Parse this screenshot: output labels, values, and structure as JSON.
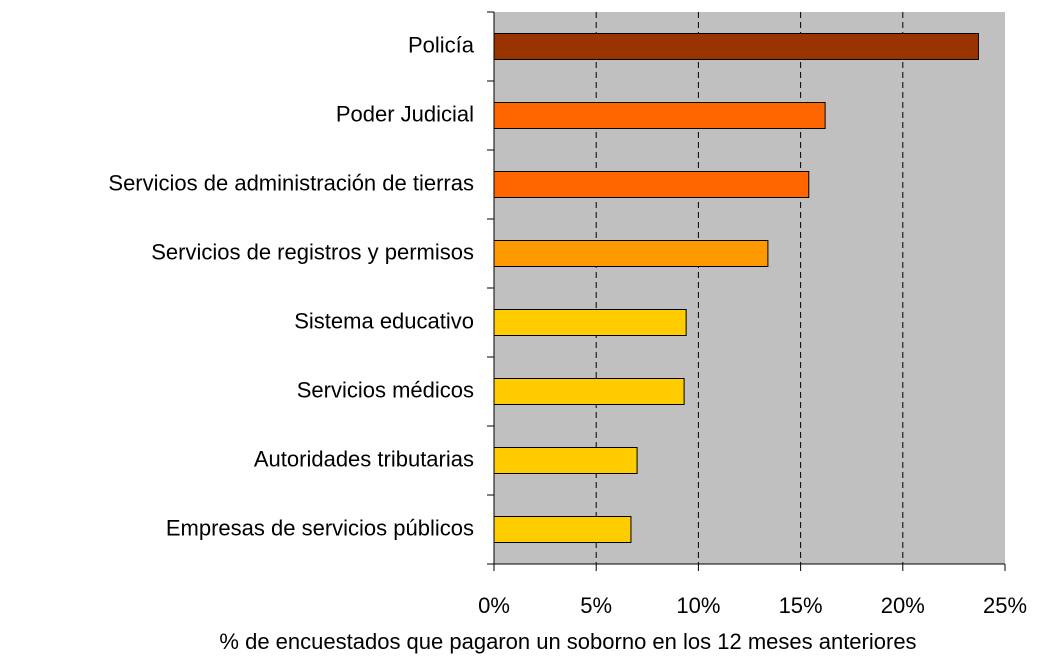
{
  "chart_data": {
    "type": "barh",
    "x_label": "% de encuestados que pagaron un soborno en los 12 meses anteriores",
    "categories": [
      "Policía",
      "Poder Judicial",
      "Servicios de administración de tierras",
      "Servicios de registros y permisos",
      "Sistema educativo",
      "Servicios médicos",
      "Autoridades tributarias",
      "Empresas de servicios públicos"
    ],
    "values": [
      23.7,
      16.2,
      15.4,
      13.4,
      9.4,
      9.3,
      7.0,
      6.7
    ],
    "colors": [
      "#993300",
      "#ff6600",
      "#ff6600",
      "#ff9900",
      "#ffcc00",
      "#ffcc00",
      "#ffcc00",
      "#ffcc00"
    ],
    "xlim": [
      0,
      25
    ],
    "xticks": [
      {
        "value": 0,
        "label": "0%"
      },
      {
        "value": 5,
        "label": "5%"
      },
      {
        "value": 10,
        "label": "10%"
      },
      {
        "value": 15,
        "label": "15%"
      },
      {
        "value": 20,
        "label": "20%"
      },
      {
        "value": 25,
        "label": "25%"
      }
    ],
    "grid": true,
    "plot_background": "#c0c0c0"
  }
}
